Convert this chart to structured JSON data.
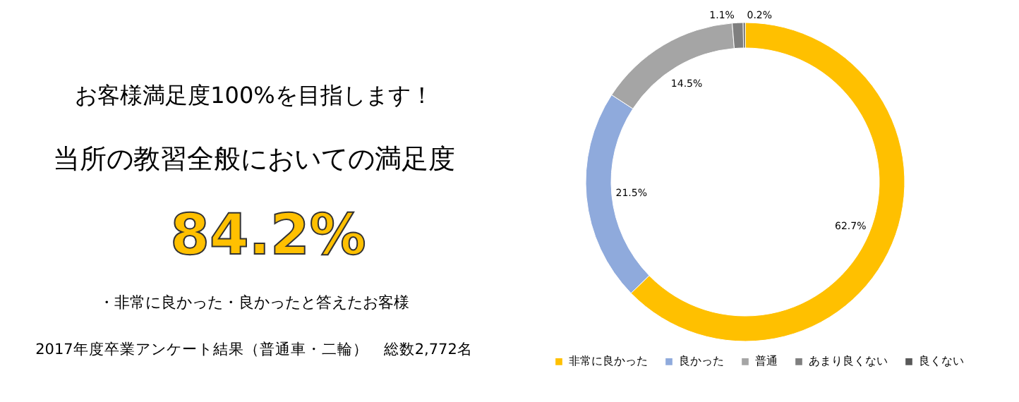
{
  "chart_data": {
    "type": "donut",
    "title": "お客様満足度100%を目指します！",
    "subtitle": "当所の教習全般においての満足度",
    "annotations": [
      "84.2%",
      "・非常に良かった・良かったと答えたお客様",
      "2017年度卒業アンケート結果（普通車・二輪）　総数2,772名"
    ],
    "categories": [
      "非常に良かった",
      "良かった",
      "普通",
      "あまり良くない",
      "良くない"
    ],
    "values": [
      62.7,
      21.5,
      14.5,
      1.1,
      0.2
    ],
    "colors": [
      "#ffc000",
      "#8faadc",
      "#a5a5a5",
      "#7f7f7f",
      "#595959"
    ],
    "value_labels": [
      "62.7%",
      "21.5%",
      "14.5%",
      "1.1%",
      "0.2%"
    ],
    "legend": "bottom"
  }
}
